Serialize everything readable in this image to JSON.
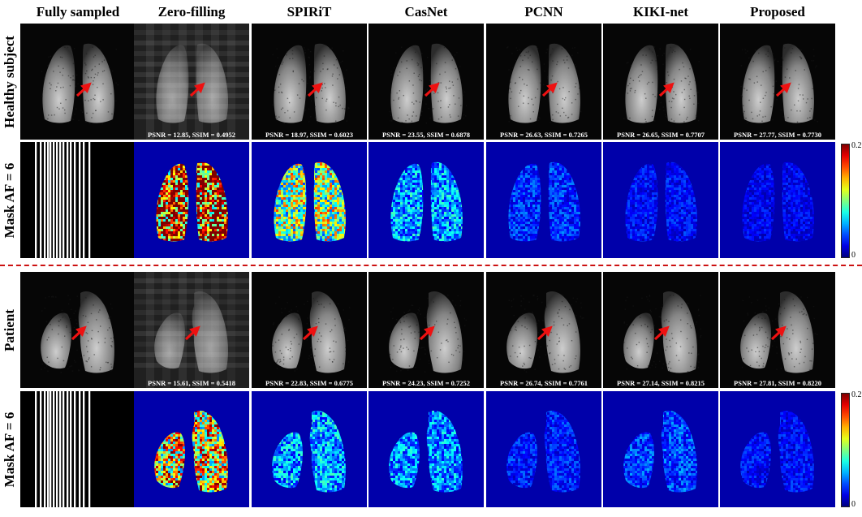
{
  "columns": [
    {
      "label": "Fully sampled"
    },
    {
      "label": "Zero-filling"
    },
    {
      "label": "SPIRiT"
    },
    {
      "label": "CasNet"
    },
    {
      "label": "PCNN"
    },
    {
      "label": "KIKI-net"
    },
    {
      "label": "Proposed"
    }
  ],
  "rows": [
    {
      "label": "Healthy subject"
    },
    {
      "label": "Mask AF = 6"
    },
    {
      "label": "Patient"
    },
    {
      "label": "Mask AF = 6"
    }
  ],
  "healthy": {
    "metrics": [
      "PSNR = 12.85, SSIM = 0.4952",
      "PSNR = 18.97, SSIM = 0.6023",
      "PSNR = 23.55, SSIM = 0.6878",
      "PSNR = 26.63, SSIM = 0.7265",
      "PSNR = 26.65, SSIM = 0.7707",
      "PSNR = 27.77, SSIM = 0.7730"
    ],
    "error_levels": [
      0.95,
      0.55,
      0.3,
      0.18,
      0.14,
      0.12
    ]
  },
  "patient": {
    "metrics": [
      "PSNR = 15.61, SSIM = 0.5418",
      "PSNR = 22.83, SSIM = 0.6775",
      "PSNR = 24.23, SSIM = 0.7252",
      "PSNR = 26.74, SSIM = 0.7761",
      "PSNR = 27.14, SSIM = 0.8215",
      "PSNR = 27.81, SSIM = 0.8220"
    ],
    "error_levels": [
      0.7,
      0.3,
      0.28,
      0.16,
      0.2,
      0.14
    ]
  },
  "colorbar": {
    "max_label": "0.2",
    "min_label": "0"
  },
  "colors": {
    "arrow": "#ee1111",
    "separator": "#cc1111",
    "error_background": "#0000aa"
  }
}
